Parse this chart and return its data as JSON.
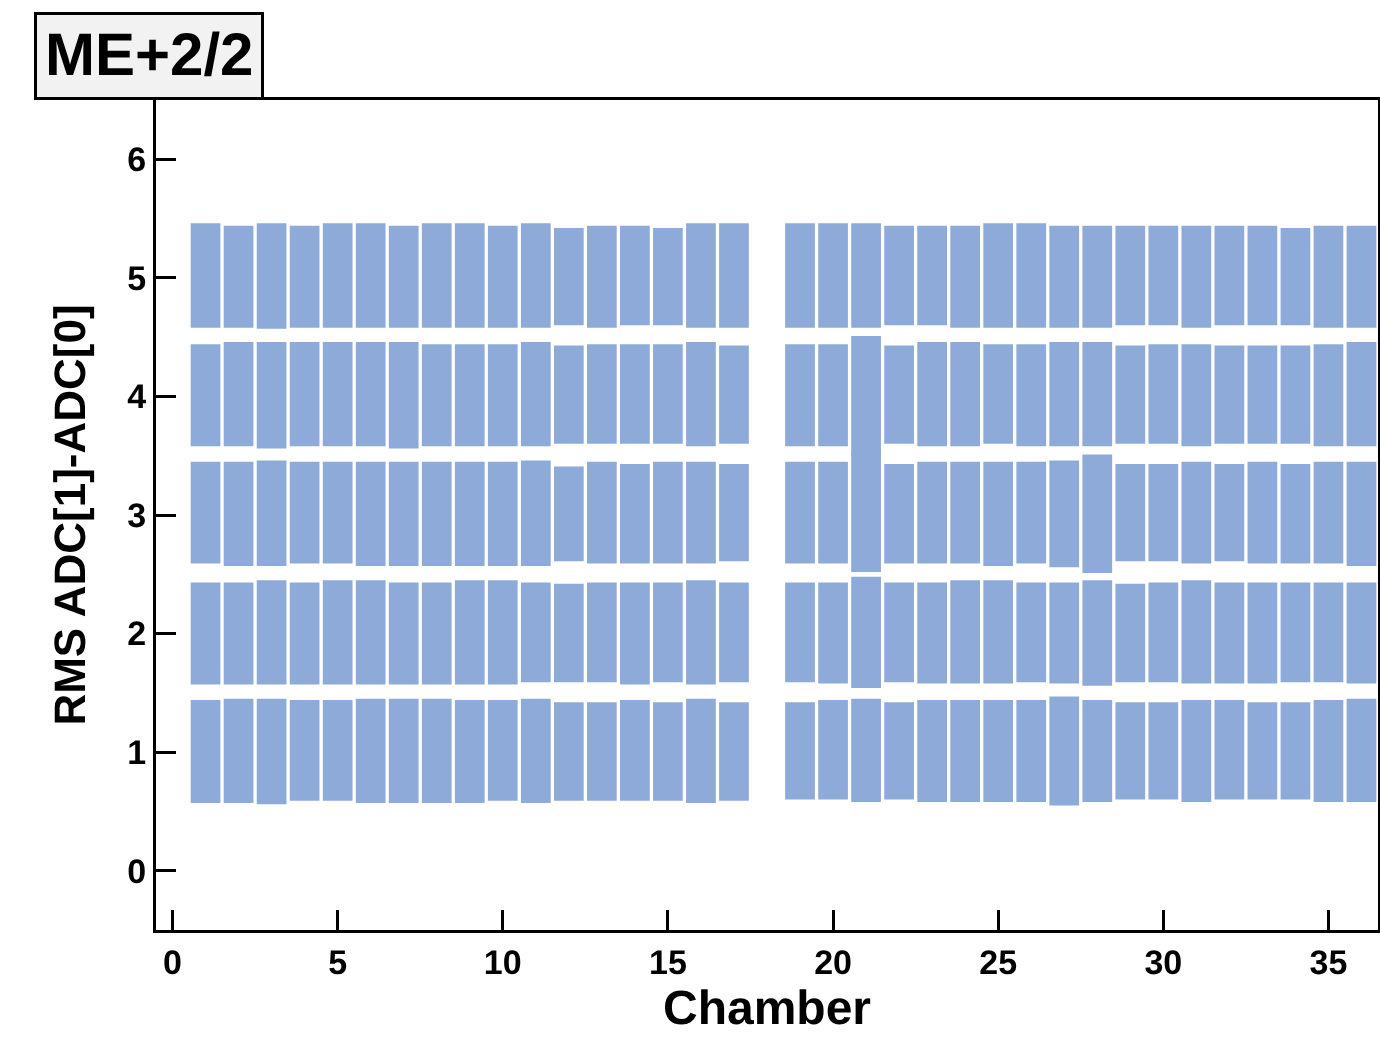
{
  "chart_data": {
    "type": "bar",
    "title": "ME+2/2",
    "xlabel": "Chamber",
    "ylabel": "RMS ADC[1]-ADC[0]",
    "x": [
      1,
      2,
      3,
      4,
      5,
      6,
      7,
      8,
      9,
      10,
      11,
      12,
      13,
      14,
      15,
      16,
      17,
      18,
      19,
      20,
      21,
      22,
      23,
      24,
      25,
      26,
      27,
      28,
      29,
      30,
      31,
      32,
      33,
      34,
      35,
      36
    ],
    "xlim": [
      -0.5,
      36.5
    ],
    "xticks": [
      0,
      5,
      10,
      15,
      20,
      25,
      30,
      35
    ],
    "ylim": [
      -0.5,
      6.5
    ],
    "yticks": [
      0,
      1,
      2,
      3,
      4,
      5,
      6
    ],
    "grid": false,
    "series": [
      {
        "color": "#8eaad9",
        "base": [
          0.57,
          0.57,
          0.56,
          0.59,
          0.59,
          0.57,
          0.57,
          0.57,
          0.57,
          0.59,
          0.57,
          0.59,
          0.59,
          0.59,
          0.59,
          0.57,
          0.59,
          null,
          0.6,
          0.6,
          0.58,
          0.6,
          0.58,
          0.58,
          0.58,
          0.58,
          0.55,
          0.58,
          0.6,
          0.6,
          0.58,
          0.6,
          0.6,
          0.6,
          0.58,
          0.58
        ],
        "values": [
          0.87,
          0.88,
          0.89,
          0.85,
          0.85,
          0.88,
          0.88,
          0.88,
          0.87,
          0.85,
          0.88,
          0.83,
          0.83,
          0.85,
          0.83,
          0.88,
          0.83,
          null,
          0.82,
          0.84,
          0.87,
          0.82,
          0.86,
          0.86,
          0.86,
          0.86,
          0.92,
          0.86,
          0.82,
          0.82,
          0.86,
          0.84,
          0.82,
          0.82,
          0.86,
          0.87
        ]
      },
      {
        "color": "#8eaad9",
        "base": [
          1.57,
          1.57,
          1.57,
          1.57,
          1.57,
          1.57,
          1.57,
          1.57,
          1.57,
          1.57,
          1.59,
          1.59,
          1.59,
          1.57,
          1.59,
          1.57,
          1.59,
          null,
          1.59,
          1.58,
          1.54,
          1.59,
          1.58,
          1.58,
          1.58,
          1.59,
          1.58,
          1.56,
          1.59,
          1.59,
          1.58,
          1.58,
          1.58,
          1.59,
          1.59,
          1.58
        ],
        "values": [
          0.86,
          0.86,
          0.88,
          0.86,
          0.88,
          0.88,
          0.86,
          0.86,
          0.88,
          0.88,
          0.84,
          0.83,
          0.84,
          0.86,
          0.84,
          0.88,
          0.84,
          null,
          0.84,
          0.85,
          0.94,
          0.84,
          0.85,
          0.87,
          0.87,
          0.84,
          0.85,
          0.89,
          0.83,
          0.84,
          0.87,
          0.85,
          0.85,
          0.84,
          0.84,
          0.85
        ]
      },
      {
        "color": "#8eaad9",
        "base": [
          2.59,
          2.57,
          2.57,
          2.59,
          2.59,
          2.57,
          2.57,
          2.57,
          2.57,
          2.57,
          2.57,
          2.61,
          2.59,
          2.59,
          2.59,
          2.59,
          2.61,
          null,
          2.59,
          2.59,
          2.52,
          2.59,
          2.59,
          2.59,
          2.57,
          2.59,
          2.56,
          2.51,
          2.61,
          2.61,
          2.59,
          2.61,
          2.59,
          2.59,
          2.59,
          2.57
        ],
        "values": [
          0.86,
          0.88,
          0.89,
          0.86,
          0.86,
          0.88,
          0.88,
          0.88,
          0.88,
          0.88,
          0.89,
          0.8,
          0.86,
          0.84,
          0.86,
          0.86,
          0.82,
          null,
          0.86,
          0.86,
          1.0,
          0.84,
          0.86,
          0.86,
          0.88,
          0.86,
          0.9,
          1.0,
          0.82,
          0.82,
          0.86,
          0.82,
          0.86,
          0.84,
          0.86,
          0.88
        ]
      },
      {
        "color": "#8eaad9",
        "base": [
          3.58,
          3.58,
          3.56,
          3.58,
          3.58,
          3.58,
          3.56,
          3.58,
          3.58,
          3.58,
          3.58,
          3.6,
          3.6,
          3.6,
          3.6,
          3.58,
          3.6,
          null,
          3.58,
          3.58,
          3.5,
          3.6,
          3.58,
          3.58,
          3.6,
          3.58,
          3.58,
          3.58,
          3.6,
          3.6,
          3.58,
          3.6,
          3.6,
          3.6,
          3.58,
          3.58
        ],
        "values": [
          0.86,
          0.88,
          0.9,
          0.88,
          0.88,
          0.88,
          0.9,
          0.86,
          0.86,
          0.86,
          0.88,
          0.83,
          0.84,
          0.84,
          0.84,
          0.88,
          0.83,
          null,
          0.86,
          0.86,
          1.01,
          0.83,
          0.88,
          0.88,
          0.84,
          0.86,
          0.88,
          0.88,
          0.83,
          0.84,
          0.86,
          0.83,
          0.83,
          0.83,
          0.86,
          0.88
        ]
      },
      {
        "color": "#8eaad9",
        "base": [
          4.58,
          4.58,
          4.57,
          4.58,
          4.58,
          4.58,
          4.58,
          4.58,
          4.58,
          4.58,
          4.58,
          4.6,
          4.58,
          4.6,
          4.6,
          4.58,
          4.58,
          null,
          4.58,
          4.58,
          4.58,
          4.6,
          4.6,
          4.58,
          4.58,
          4.58,
          4.58,
          4.58,
          4.6,
          4.6,
          4.58,
          4.6,
          4.6,
          4.6,
          4.58,
          4.58
        ],
        "values": [
          0.88,
          0.86,
          0.89,
          0.86,
          0.88,
          0.88,
          0.86,
          0.88,
          0.88,
          0.86,
          0.88,
          0.82,
          0.86,
          0.84,
          0.82,
          0.88,
          0.88,
          null,
          0.88,
          0.88,
          0.88,
          0.84,
          0.84,
          0.86,
          0.88,
          0.88,
          0.86,
          0.86,
          0.84,
          0.84,
          0.86,
          0.84,
          0.84,
          0.82,
          0.86,
          0.86
        ]
      }
    ]
  }
}
